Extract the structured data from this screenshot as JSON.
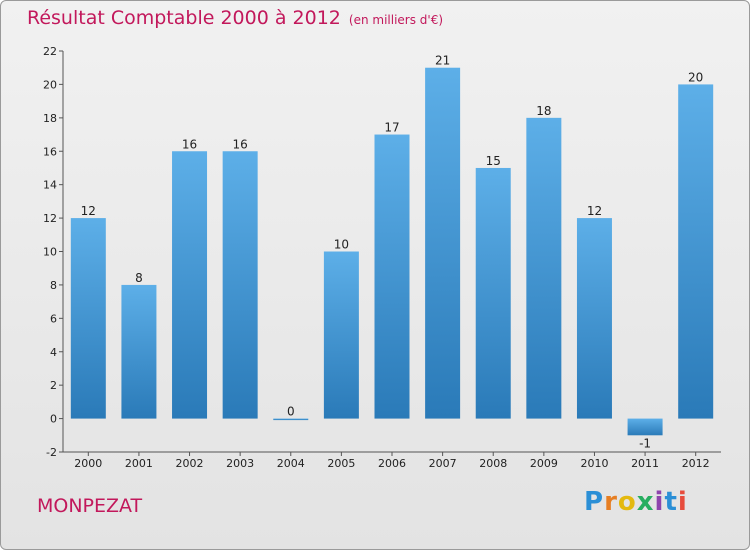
{
  "header": {
    "title": "Résultat Comptable 2000 à 2012",
    "unit": "(en milliers d'€)"
  },
  "footer": {
    "place": "MONPEZAT",
    "logo": "Proxiti"
  },
  "colors": {
    "title": "#c2185b",
    "bar_light": "#5dafe8",
    "bar_dark": "#2a7ab8",
    "logo": [
      "#2b8fd6",
      "#e67e22",
      "#e4b90f",
      "#27ae60",
      "#8e44ad",
      "#2b8fd6",
      "#e74c3c"
    ]
  },
  "chart_data": {
    "type": "bar",
    "title": "Résultat Comptable 2000 à 2012",
    "subtitle": "(en milliers d'€)",
    "xlabel": "",
    "ylabel": "",
    "categories": [
      "2000",
      "2001",
      "2002",
      "2003",
      "2004",
      "2005",
      "2006",
      "2007",
      "2008",
      "2009",
      "2010",
      "2011",
      "2012"
    ],
    "values": [
      12,
      8,
      16,
      16,
      0,
      10,
      17,
      21,
      15,
      18,
      12,
      -1,
      20
    ],
    "ylim": [
      -2,
      22
    ],
    "yticks": [
      -2,
      0,
      2,
      4,
      6,
      8,
      10,
      12,
      14,
      16,
      18,
      20,
      22
    ],
    "grid": false,
    "data_labels": true
  }
}
